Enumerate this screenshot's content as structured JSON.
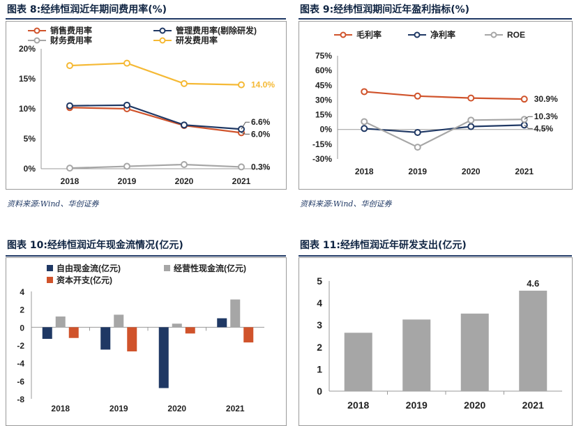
{
  "panels": [
    {
      "title": "图表 8:经纬恒润近年期间费用率(%)",
      "source": "资料来源:Wind、华创证券"
    },
    {
      "title": "图表 9:经纬恒润期间近年盈利指标(%)",
      "source": "资料来源:Wind、华创证券"
    },
    {
      "title": "图表 10:经纬恒润近年现金流情况(亿元)"
    },
    {
      "title": "图表 11:经纬恒润近年研发支出(亿元)"
    }
  ],
  "chart_data": [
    {
      "type": "line",
      "categories": [
        "2018",
        "2019",
        "2020",
        "2021"
      ],
      "ylim": [
        0,
        20
      ],
      "yticks": [
        "0%",
        "5%",
        "10%",
        "15%",
        "20%"
      ],
      "grid": false,
      "legend_position": "top",
      "series": [
        {
          "name": "销售费用率",
          "color": "#d0532b",
          "values": [
            10.2,
            10.0,
            7.2,
            6.0
          ],
          "end_label": "6.0%"
        },
        {
          "name": "管理费用率(剔除研发)",
          "color": "#1f3864",
          "values": [
            10.5,
            10.6,
            7.3,
            6.6
          ],
          "end_label": "6.6%"
        },
        {
          "name": "财务费用率",
          "color": "#a6a6a6",
          "values": [
            0.1,
            0.4,
            0.7,
            0.3
          ],
          "end_label": "0.3%"
        },
        {
          "name": "研发费用率",
          "color": "#f5b935",
          "values": [
            17.2,
            17.6,
            14.2,
            14.0
          ],
          "end_label": "14.0%"
        }
      ]
    },
    {
      "type": "line",
      "categories": [
        "2018",
        "2019",
        "2020",
        "2021"
      ],
      "ylim": [
        -30,
        75
      ],
      "yticks": [
        "-30%",
        "-15%",
        "0%",
        "15%",
        "30%",
        "45%",
        "60%",
        "75%"
      ],
      "grid": false,
      "legend_position": "top",
      "series": [
        {
          "name": "毛利率",
          "color": "#d0532b",
          "values": [
            38.5,
            34.0,
            32.0,
            30.9
          ],
          "end_label": "30.9%"
        },
        {
          "name": "净利率",
          "color": "#1f3864",
          "values": [
            1.0,
            -3.0,
            3.0,
            4.5
          ],
          "end_label": "4.5%"
        },
        {
          "name": "ROE",
          "color": "#a6a6a6",
          "values": [
            8.0,
            -18.0,
            9.5,
            10.3
          ],
          "end_label": "10.3%"
        }
      ]
    },
    {
      "type": "bar",
      "categories": [
        "2018",
        "2019",
        "2020",
        "2021"
      ],
      "ylim": [
        -8,
        4
      ],
      "yticks": [
        "-8",
        "-6",
        "-4",
        "-2",
        "0",
        "2",
        "4"
      ],
      "grid": false,
      "legend_position": "top",
      "series": [
        {
          "name": "自由现金流(亿元)",
          "color": "#1f3864",
          "values": [
            -1.3,
            -2.5,
            -6.8,
            1.0
          ]
        },
        {
          "name": "经营性现金流(亿元)",
          "color": "#a6a6a6",
          "values": [
            1.2,
            1.4,
            0.4,
            3.1
          ]
        },
        {
          "name": "资本开支(亿元)",
          "color": "#d0532b",
          "values": [
            -1.2,
            -2.7,
            -0.7,
            -1.7
          ]
        }
      ]
    },
    {
      "type": "bar",
      "categories": [
        "2018",
        "2019",
        "2020",
        "2021"
      ],
      "ylim": [
        0,
        5
      ],
      "yticks": [
        "0",
        "1",
        "2",
        "3",
        "4",
        "5"
      ],
      "grid": false,
      "series": [
        {
          "color": "#a6a6a6",
          "values": [
            2.65,
            3.25,
            3.52,
            4.56
          ],
          "labels": [
            "",
            "",
            "",
            "4.6"
          ]
        }
      ]
    }
  ]
}
